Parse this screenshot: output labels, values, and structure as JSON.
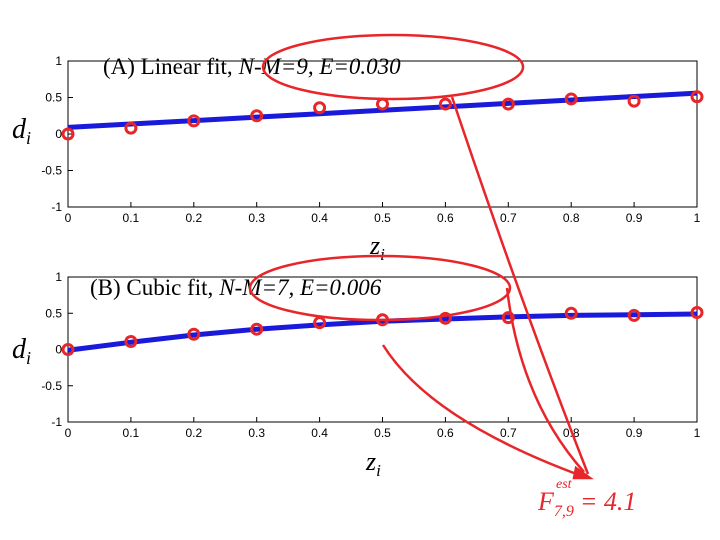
{
  "chart_data": [
    {
      "type": "scatter",
      "title_parts": [
        "(A) Linear fit,",
        "N-M=9, E=0.030"
      ],
      "ylabel": "d",
      "ylabel_sub": "i",
      "xlabel": "z",
      "xlabel_sub": "i",
      "x": [
        0,
        0.1,
        0.2,
        0.3,
        0.4,
        0.5,
        0.6,
        0.7,
        0.8,
        0.9,
        1
      ],
      "series": [
        {
          "mode": "markers",
          "color": "#e8262a",
          "values": [
            0.0,
            0.08,
            0.18,
            0.25,
            0.36,
            0.41,
            0.41,
            0.41,
            0.48,
            0.45,
            0.51
          ]
        },
        {
          "mode": "line",
          "color": "#1a1adb",
          "values": [
            0.09,
            0.137,
            0.184,
            0.231,
            0.278,
            0.325,
            0.372,
            0.419,
            0.466,
            0.513,
            0.56
          ]
        }
      ],
      "xlim": [
        0,
        1
      ],
      "ylim": [
        -1,
        1
      ],
      "xticks": [
        0,
        0.1,
        0.2,
        0.3,
        0.4,
        0.5,
        0.6,
        0.7,
        0.8,
        0.9,
        1
      ],
      "yticks": [
        -1,
        -0.5,
        0,
        0.5,
        1
      ]
    },
    {
      "type": "scatter",
      "title_parts": [
        "(B) Cubic fit,",
        "N-M=7, E=0.006"
      ],
      "ylabel": "d",
      "ylabel_sub": "i",
      "xlabel": "z",
      "xlabel_sub": "i",
      "x": [
        0,
        0.1,
        0.2,
        0.3,
        0.4,
        0.5,
        0.6,
        0.7,
        0.8,
        0.9,
        1
      ],
      "series": [
        {
          "mode": "markers",
          "color": "#e8262a",
          "values": [
            0.0,
            0.11,
            0.21,
            0.28,
            0.37,
            0.41,
            0.43,
            0.44,
            0.5,
            0.47,
            0.51
          ]
        },
        {
          "mode": "line",
          "color": "#1a1adb",
          "values": [
            -0.01,
            0.1,
            0.2,
            0.28,
            0.34,
            0.39,
            0.42,
            0.45,
            0.47,
            0.48,
            0.49
          ]
        }
      ],
      "xlim": [
        0,
        1
      ],
      "ylim": [
        -1,
        1
      ],
      "xticks": [
        0,
        0.1,
        0.2,
        0.3,
        0.4,
        0.5,
        0.6,
        0.7,
        0.8,
        0.9,
        1
      ],
      "yticks": [
        -1,
        -0.5,
        0,
        0.5,
        1
      ]
    }
  ],
  "annotation": {
    "sup": "est",
    "main": "F",
    "sub": "7,9",
    "rest": "= 4.1"
  }
}
